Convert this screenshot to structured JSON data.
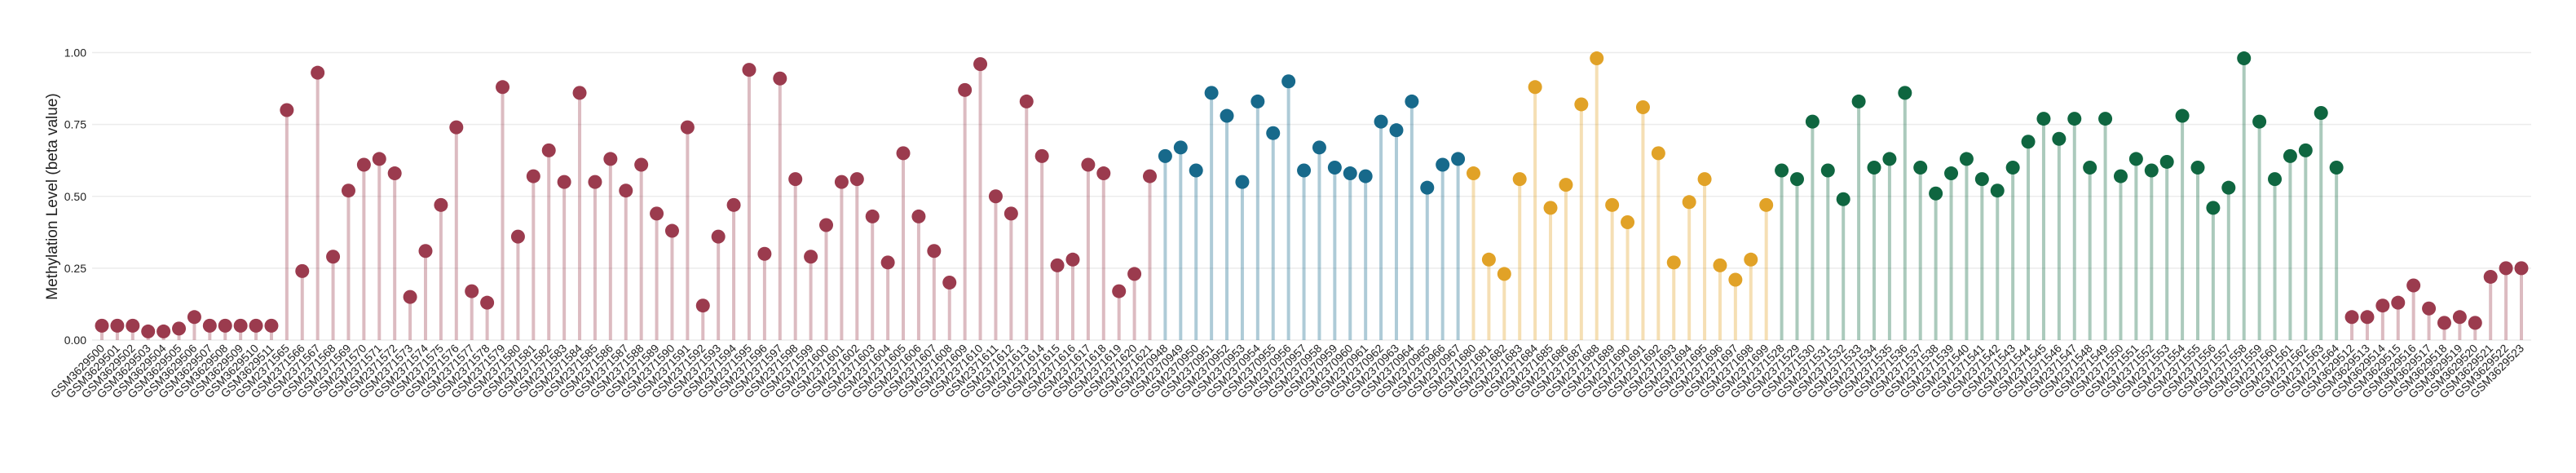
{
  "chart_data": {
    "type": "lollipop",
    "y_label": "Methylation Level (beta value)",
    "ylim": [
      0,
      1
    ],
    "yticks": [
      {
        "value": 0,
        "label": "0.00"
      },
      {
        "value": 0.25,
        "label": "0.25"
      },
      {
        "value": 0.5,
        "label": "0.50"
      },
      {
        "value": 0.75,
        "label": "0.75"
      },
      {
        "value": 1,
        "label": "1.00"
      }
    ],
    "grid": true,
    "categories": [
      "GSM3629500",
      "GSM3629501",
      "GSM3629502",
      "GSM3629503",
      "GSM3629504",
      "GSM3629505",
      "GSM3629506",
      "GSM3629507",
      "GSM3629508",
      "GSM3629509",
      "GSM3629510",
      "GSM3629511",
      "GSM2371565",
      "GSM2371566",
      "GSM2371567",
      "GSM2371568",
      "GSM2371569",
      "GSM2371570",
      "GSM2371571",
      "GSM2371572",
      "GSM2371573",
      "GSM2371574",
      "GSM2371575",
      "GSM2371576",
      "GSM2371577",
      "GSM2371578",
      "GSM2371579",
      "GSM2371580",
      "GSM2371581",
      "GSM2371582",
      "GSM2371583",
      "GSM2371584",
      "GSM2371585",
      "GSM2371586",
      "GSM2371587",
      "GSM2371588",
      "GSM2371589",
      "GSM2371590",
      "GSM2371591",
      "GSM2371592",
      "GSM2371593",
      "GSM2371594",
      "GSM2371595",
      "GSM2371596",
      "GSM2371597",
      "GSM2371598",
      "GSM2371599",
      "GSM2371600",
      "GSM2371601",
      "GSM2371602",
      "GSM2371603",
      "GSM2371604",
      "GSM2371605",
      "GSM2371606",
      "GSM2371607",
      "GSM2371608",
      "GSM2371609",
      "GSM2371610",
      "GSM2371611",
      "GSM2371612",
      "GSM2371613",
      "GSM2371614",
      "GSM2371615",
      "GSM2371616",
      "GSM2371617",
      "GSM2371618",
      "GSM2371619",
      "GSM2371620",
      "GSM2371621",
      "GSM2370948",
      "GSM2370949",
      "GSM2370950",
      "GSM2370951",
      "GSM2370952",
      "GSM2370953",
      "GSM2370954",
      "GSM2370955",
      "GSM2370956",
      "GSM2370957",
      "GSM2370958",
      "GSM2370959",
      "GSM2370960",
      "GSM2370961",
      "GSM2370962",
      "GSM2370963",
      "GSM2370964",
      "GSM2370965",
      "GSM2370966",
      "GSM2370967",
      "GSM2371680",
      "GSM2371681",
      "GSM2371682",
      "GSM2371683",
      "GSM2371684",
      "GSM2371685",
      "GSM2371686",
      "GSM2371687",
      "GSM2371688",
      "GSM2371689",
      "GSM2371690",
      "GSM2371691",
      "GSM2371692",
      "GSM2371693",
      "GSM2371694",
      "GSM2371695",
      "GSM2371696",
      "GSM2371697",
      "GSM2371698",
      "GSM2371699",
      "GSM2371528",
      "GSM2371529",
      "GSM2371530",
      "GSM2371531",
      "GSM2371532",
      "GSM2371533",
      "GSM2371534",
      "GSM2371535",
      "GSM2371536",
      "GSM2371537",
      "GSM2371538",
      "GSM2371539",
      "GSM2371540",
      "GSM2371541",
      "GSM2371542",
      "GSM2371543",
      "GSM2371544",
      "GSM2371545",
      "GSM2371546",
      "GSM2371547",
      "GSM2371548",
      "GSM2371549",
      "GSM2371550",
      "GSM2371551",
      "GSM2371552",
      "GSM2371553",
      "GSM2371554",
      "GSM2371555",
      "GSM2371556",
      "GSM2371557",
      "GSM2371558",
      "GSM2371559",
      "GSM2371560",
      "GSM2371561",
      "GSM2371562",
      "GSM2371563",
      "GSM2371564",
      "GSM3629512",
      "GSM3629513",
      "GSM3629514",
      "GSM3629515",
      "GSM3629516",
      "GSM3629517",
      "GSM3629518",
      "GSM3629519",
      "GSM3629520",
      "GSM3629521",
      "GSM3629522",
      "GSM3629523"
    ],
    "values": [
      0.05,
      0.05,
      0.05,
      0.03,
      0.03,
      0.04,
      0.08,
      0.05,
      0.05,
      0.05,
      0.05,
      0.05,
      0.8,
      0.24,
      0.93,
      0.29,
      0.52,
      0.61,
      0.63,
      0.58,
      0.15,
      0.31,
      0.47,
      0.74,
      0.17,
      0.13,
      0.88,
      0.36,
      0.57,
      0.66,
      0.55,
      0.86,
      0.55,
      0.63,
      0.52,
      0.61,
      0.44,
      0.38,
      0.74,
      0.12,
      0.36,
      0.47,
      0.94,
      0.3,
      0.91,
      0.56,
      0.29,
      0.4,
      0.55,
      0.56,
      0.43,
      0.27,
      0.65,
      0.43,
      0.31,
      0.2,
      0.87,
      0.96,
      0.5,
      0.44,
      0.83,
      0.64,
      0.26,
      0.28,
      0.61,
      0.58,
      0.17,
      0.23,
      0.57,
      0.64,
      0.67,
      0.59,
      0.86,
      0.78,
      0.55,
      0.83,
      0.72,
      0.9,
      0.59,
      0.67,
      0.6,
      0.58,
      0.57,
      0.76,
      0.73,
      0.83,
      0.53,
      0.61,
      0.63,
      0.58,
      0.28,
      0.23,
      0.56,
      0.88,
      0.46,
      0.54,
      0.82,
      0.98,
      0.47,
      0.41,
      0.81,
      0.65,
      0.27,
      0.48,
      0.56,
      0.26,
      0.21,
      0.28,
      0.47,
      0.59,
      0.56,
      0.76,
      0.59,
      0.49,
      0.83,
      0.6,
      0.63,
      0.86,
      0.6,
      0.51,
      0.58,
      0.63,
      0.56,
      0.52,
      0.6,
      0.69,
      0.77,
      0.7,
      0.77,
      0.6,
      0.77,
      0.57,
      0.63,
      0.59,
      0.62,
      0.78,
      0.6,
      0.46,
      0.53,
      0.98,
      0.76,
      0.56,
      0.64,
      0.66,
      0.79,
      0.6,
      0.08,
      0.08,
      0.12,
      0.13,
      0.19,
      0.11,
      0.06,
      0.08,
      0.06,
      0.22,
      0.25,
      0.25
    ],
    "colors": [
      "#9b3b4e",
      "#9b3b4e",
      "#9b3b4e",
      "#9b3b4e",
      "#9b3b4e",
      "#9b3b4e",
      "#9b3b4e",
      "#9b3b4e",
      "#9b3b4e",
      "#9b3b4e",
      "#9b3b4e",
      "#9b3b4e",
      "#9b3b4e",
      "#9b3b4e",
      "#9b3b4e",
      "#9b3b4e",
      "#9b3b4e",
      "#9b3b4e",
      "#9b3b4e",
      "#9b3b4e",
      "#9b3b4e",
      "#9b3b4e",
      "#9b3b4e",
      "#9b3b4e",
      "#9b3b4e",
      "#9b3b4e",
      "#9b3b4e",
      "#9b3b4e",
      "#9b3b4e",
      "#9b3b4e",
      "#9b3b4e",
      "#9b3b4e",
      "#9b3b4e",
      "#9b3b4e",
      "#9b3b4e",
      "#9b3b4e",
      "#9b3b4e",
      "#9b3b4e",
      "#9b3b4e",
      "#9b3b4e",
      "#9b3b4e",
      "#9b3b4e",
      "#9b3b4e",
      "#9b3b4e",
      "#9b3b4e",
      "#9b3b4e",
      "#9b3b4e",
      "#9b3b4e",
      "#9b3b4e",
      "#9b3b4e",
      "#9b3b4e",
      "#9b3b4e",
      "#9b3b4e",
      "#9b3b4e",
      "#9b3b4e",
      "#9b3b4e",
      "#9b3b4e",
      "#9b3b4e",
      "#9b3b4e",
      "#9b3b4e",
      "#9b3b4e",
      "#9b3b4e",
      "#9b3b4e",
      "#9b3b4e",
      "#9b3b4e",
      "#9b3b4e",
      "#9b3b4e",
      "#9b3b4e",
      "#9b3b4e",
      "#17698b",
      "#17698b",
      "#17698b",
      "#17698b",
      "#17698b",
      "#17698b",
      "#17698b",
      "#17698b",
      "#17698b",
      "#17698b",
      "#17698b",
      "#17698b",
      "#17698b",
      "#17698b",
      "#17698b",
      "#17698b",
      "#17698b",
      "#17698b",
      "#17698b",
      "#17698b",
      "#e1a227",
      "#e1a227",
      "#e1a227",
      "#e1a227",
      "#e1a227",
      "#e1a227",
      "#e1a227",
      "#e1a227",
      "#e1a227",
      "#e1a227",
      "#e1a227",
      "#e1a227",
      "#e1a227",
      "#e1a227",
      "#e1a227",
      "#e1a227",
      "#e1a227",
      "#e1a227",
      "#e1a227",
      "#e1a227",
      "#0f6640",
      "#0f6640",
      "#0f6640",
      "#0f6640",
      "#0f6640",
      "#0f6640",
      "#0f6640",
      "#0f6640",
      "#0f6640",
      "#0f6640",
      "#0f6640",
      "#0f6640",
      "#0f6640",
      "#0f6640",
      "#0f6640",
      "#0f6640",
      "#0f6640",
      "#0f6640",
      "#0f6640",
      "#0f6640",
      "#0f6640",
      "#0f6640",
      "#0f6640",
      "#0f6640",
      "#0f6640",
      "#0f6640",
      "#0f6640",
      "#0f6640",
      "#0f6640",
      "#0f6640",
      "#0f6640",
      "#0f6640",
      "#0f6640",
      "#0f6640",
      "#0f6640",
      "#0f6640",
      "#0f6640",
      "#9b3b4e",
      "#9b3b4e",
      "#9b3b4e",
      "#9b3b4e",
      "#9b3b4e",
      "#9b3b4e",
      "#9b3b4e",
      "#9b3b4e",
      "#9b3b4e",
      "#9b3b4e",
      "#9b3b4e",
      "#9b3b4e"
    ]
  }
}
